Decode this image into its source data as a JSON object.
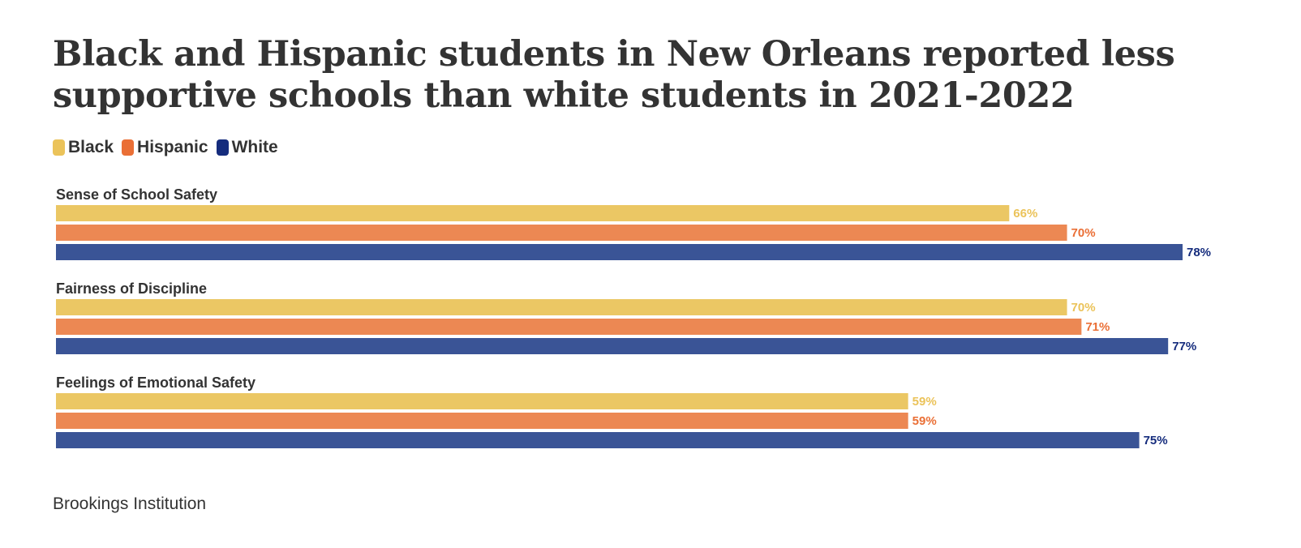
{
  "title": "Black and Hispanic students in New Orleans reported less supportive schools than white students in 2021-2022",
  "source": "Brookings Institution",
  "legend": [
    {
      "label": "Black",
      "color": "#EBC35A",
      "text_color": "#EBC35A"
    },
    {
      "label": "Hispanic",
      "color": "#EA6F36",
      "text_color": "#EA6F36"
    },
    {
      "label": "White",
      "color": "#152C7D",
      "text_color": "#152C7D"
    }
  ],
  "chart_data": {
    "type": "bar",
    "orientation": "horizontal",
    "title": "Black and Hispanic students in New Orleans reported less supportive schools than white students in 2021-2022",
    "categories": [
      "Sense of School Safety",
      "Fairness of Discipline",
      "Feelings of Emotional Safety"
    ],
    "series": [
      {
        "name": "Black",
        "values": [
          66,
          70,
          59
        ],
        "labels": [
          "66%",
          "70%",
          "59%"
        ],
        "bar_color": "#EBC764",
        "label_color": "#EBC35A"
      },
      {
        "name": "Hispanic",
        "values": [
          70,
          71,
          59
        ],
        "labels": [
          "70%",
          "71%",
          "59%"
        ],
        "bar_color": "#EC8853",
        "label_color": "#EA6F36"
      },
      {
        "name": "White",
        "values": [
          78,
          77,
          75
        ],
        "labels": [
          "78%",
          "77%",
          "75%"
        ],
        "bar_color": "#3A5496",
        "label_color": "#152C7D"
      }
    ],
    "xlim": [
      0,
      78
    ],
    "xlabel": "",
    "ylabel": "",
    "grid": false,
    "legend_position": "top-left"
  }
}
